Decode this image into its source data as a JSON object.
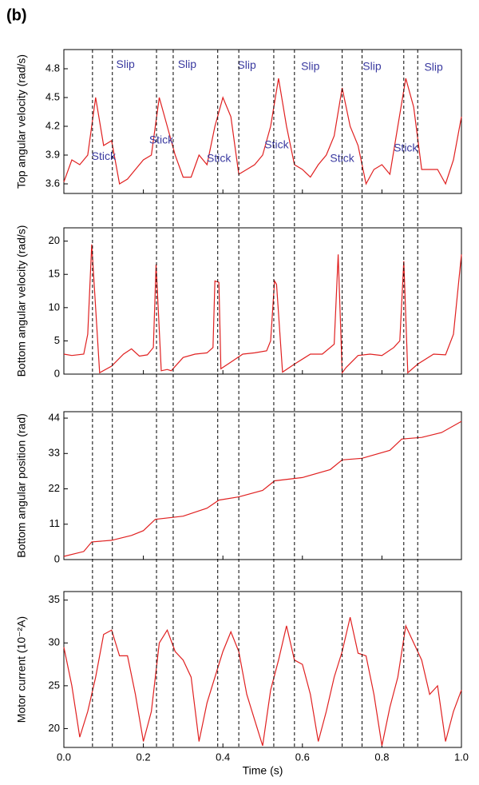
{
  "panel_label": "(b)",
  "dashed_lines": [
    0.072,
    0.122,
    0.233,
    0.275,
    0.387,
    0.44,
    0.528,
    0.58,
    0.7,
    0.75,
    0.855,
    0.89
  ],
  "chart_data": [
    {
      "type": "line",
      "ylabel": "Top angular velocity (rad/s)",
      "xlim": [
        0,
        1
      ],
      "ylim": [
        3.5,
        5.0
      ],
      "yticks": [
        3.6,
        3.9,
        4.2,
        4.5,
        4.8
      ],
      "series": [
        {
          "color": "#e02020",
          "x": [
            0,
            0.02,
            0.04,
            0.06,
            0.08,
            0.1,
            0.12,
            0.14,
            0.16,
            0.18,
            0.2,
            0.22,
            0.24,
            0.26,
            0.28,
            0.3,
            0.32,
            0.34,
            0.36,
            0.38,
            0.4,
            0.42,
            0.44,
            0.46,
            0.48,
            0.5,
            0.52,
            0.54,
            0.56,
            0.58,
            0.6,
            0.62,
            0.64,
            0.66,
            0.68,
            0.7,
            0.72,
            0.74,
            0.76,
            0.78,
            0.8,
            0.82,
            0.84,
            0.86,
            0.88,
            0.9,
            0.92,
            0.94,
            0.96,
            0.98,
            1.0
          ],
          "values": [
            3.62,
            3.85,
            3.8,
            3.9,
            4.5,
            4.0,
            4.05,
            3.6,
            3.65,
            3.75,
            3.85,
            3.9,
            4.5,
            4.2,
            3.9,
            3.67,
            3.67,
            3.9,
            3.8,
            4.2,
            4.5,
            4.3,
            3.7,
            3.75,
            3.8,
            3.9,
            4.2,
            4.7,
            4.2,
            3.8,
            3.75,
            3.67,
            3.8,
            3.9,
            4.1,
            4.6,
            4.2,
            4.0,
            3.6,
            3.75,
            3.8,
            3.7,
            4.2,
            4.7,
            4.4,
            3.75,
            3.75,
            3.75,
            3.6,
            3.85,
            4.3
          ]
        }
      ],
      "annotations": [
        {
          "text": "Stick",
          "x": 0.1,
          "y": 3.88
        },
        {
          "text": "Stick",
          "x": 0.245,
          "y": 4.05
        },
        {
          "text": "Stick",
          "x": 0.39,
          "y": 3.86
        },
        {
          "text": "Stick",
          "x": 0.535,
          "y": 4.0
        },
        {
          "text": "Stick",
          "x": 0.7,
          "y": 3.86
        },
        {
          "text": "Stick",
          "x": 0.86,
          "y": 3.97
        },
        {
          "text": "Slip",
          "x": 0.155,
          "y": 4.84
        },
        {
          "text": "Slip",
          "x": 0.31,
          "y": 4.84
        },
        {
          "text": "Slip",
          "x": 0.46,
          "y": 4.83
        },
        {
          "text": "Slip",
          "x": 0.62,
          "y": 4.82
        },
        {
          "text": "Slip",
          "x": 0.775,
          "y": 4.82
        },
        {
          "text": "Slip",
          "x": 0.93,
          "y": 4.81
        }
      ]
    },
    {
      "type": "line",
      "ylabel": "Bottom angular velocity (rad/s)",
      "xlim": [
        0,
        1
      ],
      "ylim": [
        0,
        22
      ],
      "yticks": [
        0,
        5,
        10,
        15,
        20
      ],
      "series": [
        {
          "color": "#e02020",
          "x": [
            0,
            0.02,
            0.05,
            0.06,
            0.07,
            0.09,
            0.12,
            0.15,
            0.17,
            0.19,
            0.21,
            0.225,
            0.232,
            0.245,
            0.26,
            0.27,
            0.3,
            0.33,
            0.36,
            0.375,
            0.38,
            0.39,
            0.395,
            0.42,
            0.45,
            0.48,
            0.51,
            0.52,
            0.53,
            0.535,
            0.55,
            0.58,
            0.62,
            0.65,
            0.68,
            0.69,
            0.7,
            0.71,
            0.74,
            0.77,
            0.8,
            0.83,
            0.845,
            0.855,
            0.865,
            0.89,
            0.93,
            0.96,
            0.98,
            1.0
          ],
          "values": [
            3,
            2.8,
            3,
            6,
            19.5,
            0.2,
            1.2,
            3,
            3.8,
            2.7,
            2.9,
            4,
            16.5,
            0.5,
            0.7,
            0.5,
            2.5,
            3,
            3.2,
            4,
            14,
            13.8,
            0.8,
            1.8,
            3,
            3.2,
            3.5,
            5,
            14,
            13.5,
            0.3,
            1.5,
            3,
            3,
            4.5,
            18,
            0.2,
            1,
            2.8,
            3,
            2.8,
            4,
            5,
            17,
            0.2,
            1.5,
            3,
            2.9,
            6,
            18
          ]
        }
      ]
    },
    {
      "type": "line",
      "ylabel": "Bottom angular position (rad)",
      "xlim": [
        0,
        1
      ],
      "ylim": [
        0,
        46
      ],
      "yticks": [
        0,
        11,
        22,
        33,
        44
      ],
      "series": [
        {
          "color": "#e02020",
          "x": [
            0,
            0.05,
            0.07,
            0.12,
            0.17,
            0.2,
            0.23,
            0.3,
            0.36,
            0.39,
            0.44,
            0.5,
            0.53,
            0.6,
            0.67,
            0.7,
            0.75,
            0.82,
            0.85,
            0.9,
            0.95,
            1.0
          ],
          "values": [
            1,
            2.5,
            5.5,
            6,
            7.5,
            9,
            12.5,
            13.5,
            16,
            18.5,
            19.5,
            21.5,
            24.5,
            25.5,
            28,
            31,
            31.5,
            34,
            37.5,
            38,
            39.5,
            43
          ]
        }
      ]
    },
    {
      "type": "line",
      "ylabel": "Motor current (10⁻²A)",
      "xlabel": "Time (s)",
      "xlim": [
        0,
        1
      ],
      "xticks": [
        {
          "value": 0,
          "label": "0.0"
        },
        0.2,
        0.4,
        0.6,
        0.8,
        {
          "value": 1,
          "label": "1.0"
        }
      ],
      "ylim": [
        17.8,
        36
      ],
      "yticks": [
        20,
        25,
        30,
        35
      ],
      "series": [
        {
          "color": "#e02020",
          "x": [
            0,
            0.02,
            0.04,
            0.06,
            0.08,
            0.1,
            0.12,
            0.14,
            0.16,
            0.18,
            0.2,
            0.22,
            0.24,
            0.26,
            0.28,
            0.3,
            0.32,
            0.34,
            0.36,
            0.38,
            0.4,
            0.42,
            0.44,
            0.46,
            0.48,
            0.5,
            0.52,
            0.54,
            0.56,
            0.58,
            0.6,
            0.62,
            0.64,
            0.66,
            0.68,
            0.7,
            0.72,
            0.74,
            0.76,
            0.78,
            0.8,
            0.82,
            0.84,
            0.86,
            0.88,
            0.9,
            0.92,
            0.94,
            0.96,
            0.98,
            1.0
          ],
          "values": [
            29.5,
            25,
            19,
            22,
            26,
            31,
            31.5,
            28.5,
            28.5,
            24,
            18.5,
            22,
            30,
            31.5,
            29,
            28,
            26,
            18.5,
            23,
            26,
            29,
            31.3,
            29,
            24,
            21,
            18,
            24.5,
            28,
            32,
            28,
            27.5,
            24,
            18.5,
            22,
            26,
            29,
            33,
            28.8,
            28.5,
            24,
            18,
            22.5,
            26,
            32,
            30,
            28,
            24,
            25,
            18.5,
            22,
            24.5
          ]
        }
      ]
    }
  ]
}
